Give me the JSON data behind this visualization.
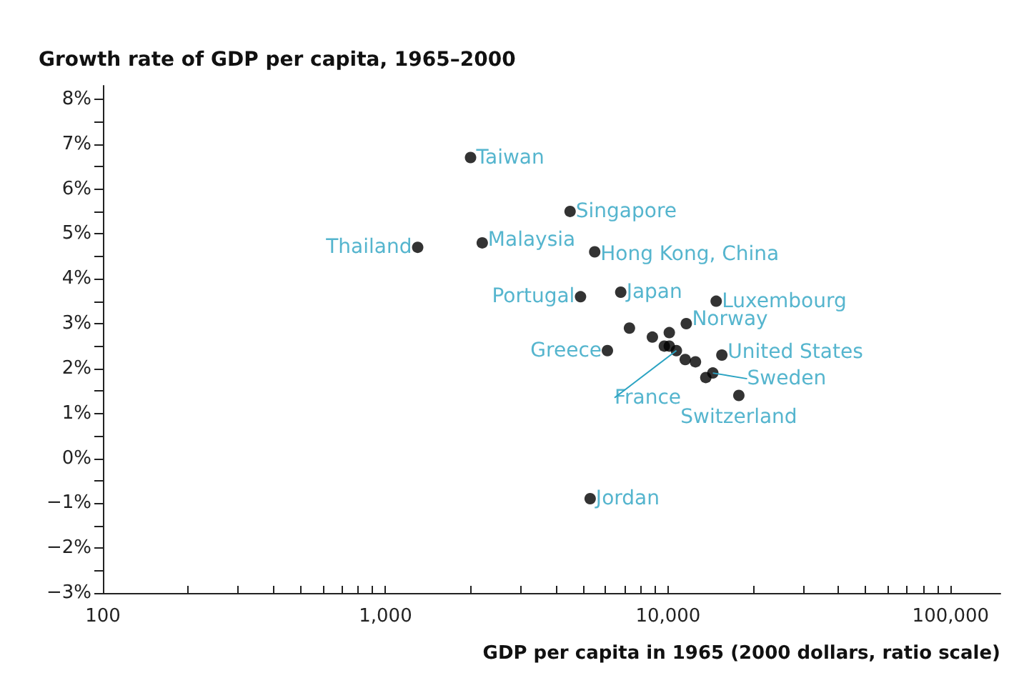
{
  "chart_data": {
    "type": "scatter",
    "title": "Growth rate of GDP per capita, 1965–2000",
    "xlabel": "GDP per capita in 1965 (2000 dollars, ratio scale)",
    "log": "x",
    "marker": "circle",
    "grid": false,
    "x": [
      2000,
      4500,
      2200,
      1300,
      5500,
      4900,
      6800,
      14800,
      11600,
      6100,
      7300,
      15500,
      17800,
      5300,
      8800,
      10100,
      9700,
      10100,
      10700,
      11500,
      12500,
      14400,
      13600
    ],
    "series": [
      {
        "color": "#000000",
        "values": [
          6.7,
          5.5,
          4.8,
          4.7,
          4.6,
          3.6,
          3.7,
          3.5,
          3.0,
          2.4,
          2.9,
          2.3,
          1.4,
          -0.9,
          2.7,
          2.8,
          2.5,
          2.5,
          2.4,
          2.2,
          2.15,
          1.9,
          1.8
        ]
      }
    ],
    "xlim": [
      100,
      150000
    ],
    "ylim": [
      -3,
      8.3
    ],
    "xticks": [
      {
        "value": 100,
        "label": "100"
      },
      {
        "value": 200,
        "label": null
      },
      {
        "value": 300,
        "label": null
      },
      {
        "value": 400,
        "label": null
      },
      {
        "value": 500,
        "label": null
      },
      {
        "value": 600,
        "label": null
      },
      {
        "value": 700,
        "label": null
      },
      {
        "value": 800,
        "label": null
      },
      {
        "value": 900,
        "label": null
      },
      {
        "value": 1000,
        "label": "1,000"
      },
      {
        "value": 2000,
        "label": null
      },
      {
        "value": 3000,
        "label": null
      },
      {
        "value": 4000,
        "label": null
      },
      {
        "value": 5000,
        "label": null
      },
      {
        "value": 6000,
        "label": null
      },
      {
        "value": 7000,
        "label": null
      },
      {
        "value": 8000,
        "label": null
      },
      {
        "value": 9000,
        "label": null
      },
      {
        "value": 10000,
        "label": "10,000"
      },
      {
        "value": 20000,
        "label": null
      },
      {
        "value": 30000,
        "label": null
      },
      {
        "value": 40000,
        "label": null
      },
      {
        "value": 50000,
        "label": null
      },
      {
        "value": 60000,
        "label": null
      },
      {
        "value": 70000,
        "label": null
      },
      {
        "value": 80000,
        "label": null
      },
      {
        "value": 90000,
        "label": null
      },
      {
        "value": 100000,
        "label": "100,000"
      }
    ],
    "yticks": [
      {
        "value": -3,
        "label": "−3%"
      },
      {
        "value": -2.5,
        "label": null
      },
      {
        "value": -2,
        "label": "−2%"
      },
      {
        "value": -1.5,
        "label": null
      },
      {
        "value": -1,
        "label": "−1%"
      },
      {
        "value": -0.5,
        "label": null
      },
      {
        "value": 0,
        "label": "0%"
      },
      {
        "value": 0.5,
        "label": null
      },
      {
        "value": 1,
        "label": "1%"
      },
      {
        "value": 1.5,
        "label": null
      },
      {
        "value": 2,
        "label": "2%"
      },
      {
        "value": 2.5,
        "label": null
      },
      {
        "value": 3,
        "label": "3%"
      },
      {
        "value": 3.5,
        "label": null
      },
      {
        "value": 4,
        "label": "4%"
      },
      {
        "value": 4.5,
        "label": null
      },
      {
        "value": 5,
        "label": "5%"
      },
      {
        "value": 5.5,
        "label": null
      },
      {
        "value": 6,
        "label": "6%"
      },
      {
        "value": 6.5,
        "label": null
      },
      {
        "value": 7,
        "label": "7%"
      },
      {
        "value": 7.5,
        "label": null
      },
      {
        "value": 8,
        "label": "8%"
      }
    ],
    "annotations": [
      {
        "text": "Taiwan",
        "x": 2000,
        "y": 6.7
      },
      {
        "text": "Singapore",
        "x": 4500,
        "y": 5.5
      },
      {
        "text": "Malaysia",
        "x": 2200,
        "y": 4.8
      },
      {
        "text": "Thailand",
        "x": 1300,
        "y": 4.7
      },
      {
        "text": "Hong Kong, China",
        "x": 5500,
        "y": 4.6
      },
      {
        "text": "Portugal",
        "x": 4900,
        "y": 3.6
      },
      {
        "text": "Japan",
        "x": 6800,
        "y": 3.7
      },
      {
        "text": "Luxembourg",
        "x": 14800,
        "y": 3.5
      },
      {
        "text": "Norway",
        "x": 11600,
        "y": 3.0
      },
      {
        "text": "Greece",
        "x": 6100,
        "y": 2.4
      },
      {
        "text": "United States",
        "x": 15500,
        "y": 2.3
      },
      {
        "text": "Sweden",
        "x": 14400,
        "y": 1.9
      },
      {
        "text": "France",
        "x": 10700,
        "y": 2.4
      },
      {
        "text": "Switzerland",
        "x": 17800,
        "y": 1.4
      },
      {
        "text": "Jordan",
        "x": 5300,
        "y": -0.9
      }
    ]
  }
}
